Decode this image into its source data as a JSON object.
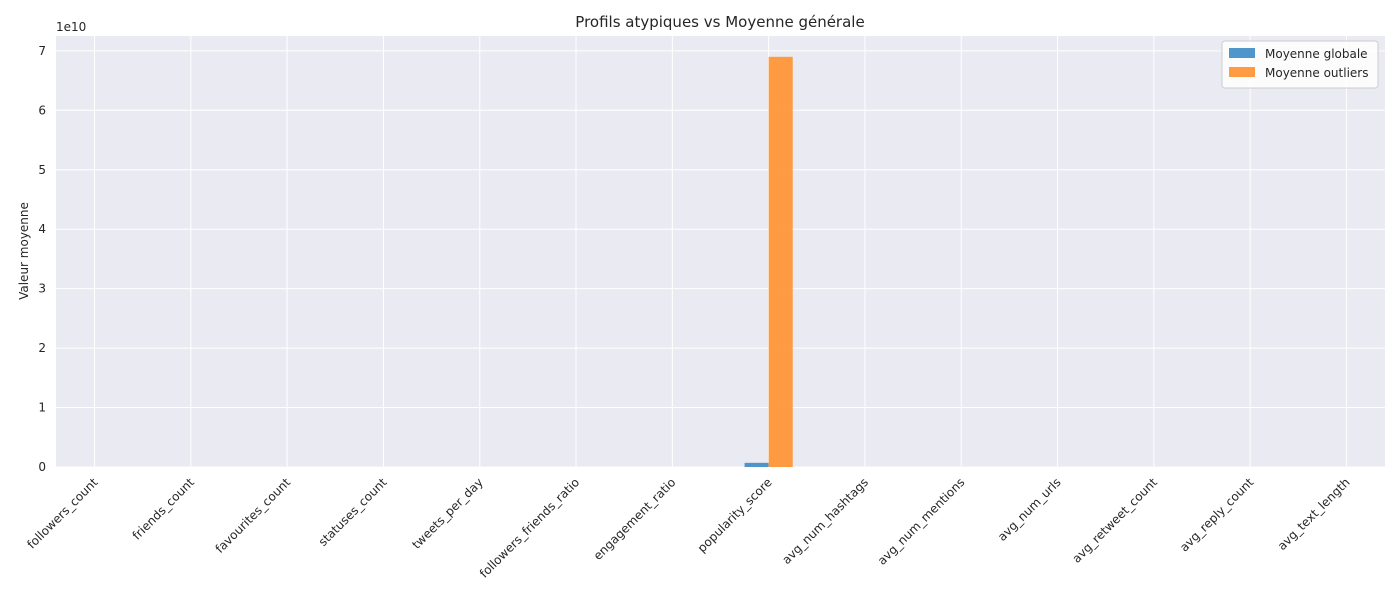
{
  "chart_data": {
    "type": "bar",
    "title": "Profils atypiques vs Moyenne générale",
    "xlabel": "",
    "ylabel": "Valeur moyenne",
    "y_multiplier_label": "1e10",
    "y_multiplier": 10000000000,
    "ylim": [
      0,
      7.25
    ],
    "yticks": [
      0,
      1,
      2,
      3,
      4,
      5,
      6,
      7
    ],
    "categories": [
      "followers_count",
      "friends_count",
      "favourites_count",
      "statuses_count",
      "tweets_per_day",
      "followers_friends_ratio",
      "engagement_ratio",
      "popularity_score",
      "avg_num_hashtags",
      "avg_num_mentions",
      "avg_num_urls",
      "avg_retweet_count",
      "avg_reply_count",
      "avg_text_length"
    ],
    "series": [
      {
        "name": "Moyenne globale",
        "color": "#3d8bc4",
        "values": [
          0,
          0,
          0,
          0,
          0,
          0,
          0,
          0.07,
          0,
          0,
          0,
          0,
          0,
          0
        ]
      },
      {
        "name": "Moyenne outliers",
        "color": "#ff912f",
        "values": [
          0,
          0,
          0,
          0,
          0,
          0,
          0,
          6.9,
          0,
          0,
          0,
          0,
          0,
          0
        ]
      }
    ],
    "grid": true,
    "legend_position": "top-right"
  }
}
